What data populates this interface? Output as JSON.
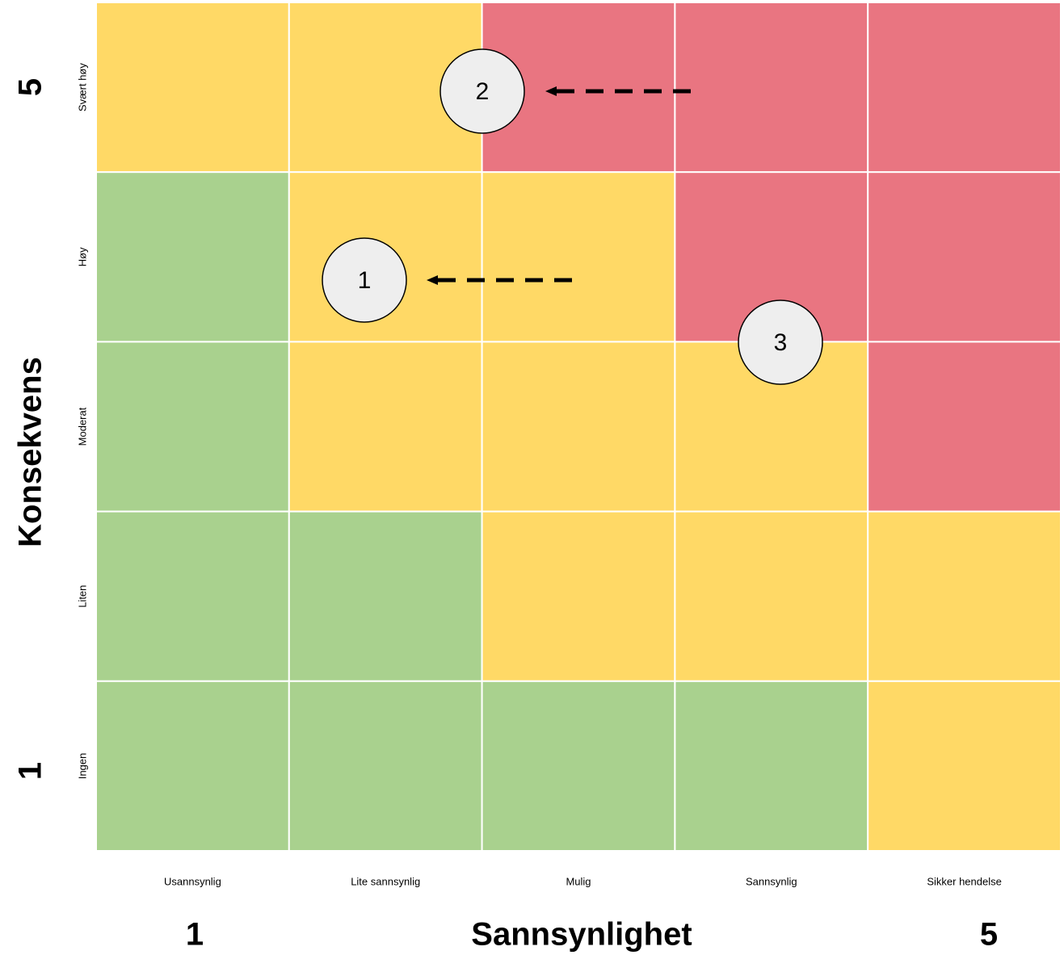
{
  "y_axis": {
    "title": "Konsekvens",
    "low": "1",
    "high": "5",
    "levels": [
      "Svært høy",
      "Høy",
      "Moderat",
      "Liten",
      "Ingen"
    ]
  },
  "x_axis": {
    "title": "Sannsynlighet",
    "low": "1",
    "high": "5",
    "levels": [
      "Usannsynlig",
      "Lite sannsynlig",
      "Mulig",
      "Sannsynlig",
      "Sikker hendelse"
    ]
  },
  "markers": [
    {
      "label": "1"
    },
    {
      "label": "2"
    },
    {
      "label": "3"
    }
  ]
}
